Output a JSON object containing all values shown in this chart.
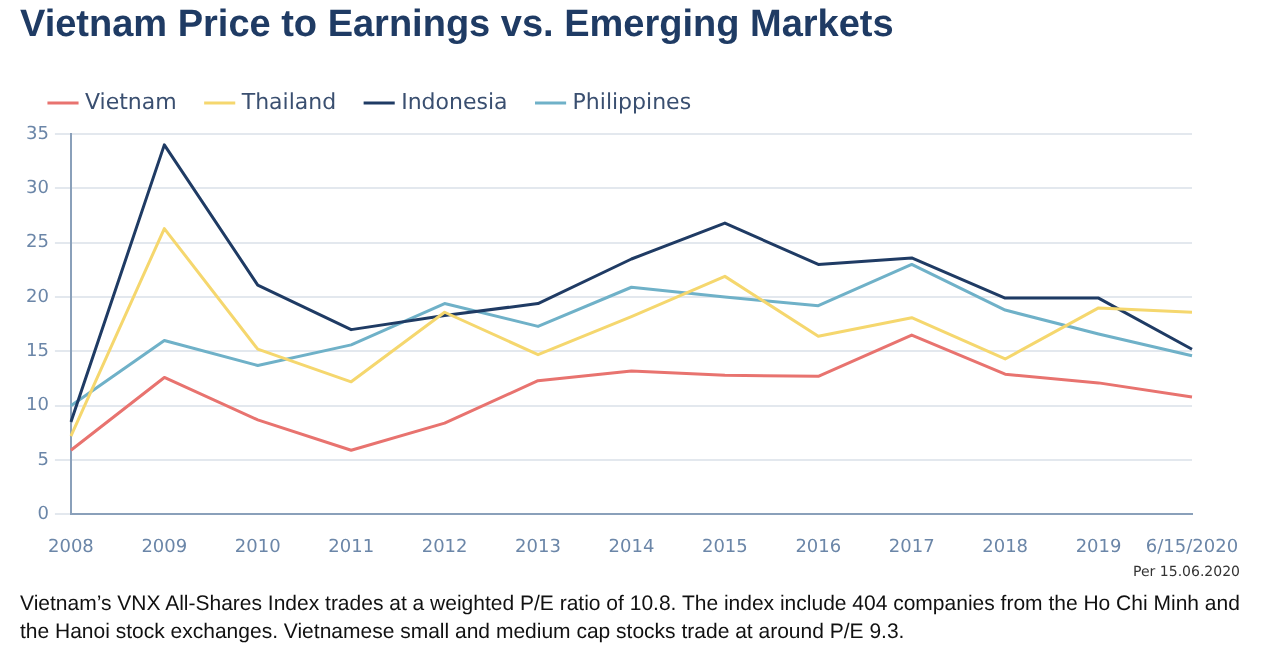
{
  "chart_data": {
    "type": "line",
    "title": "Vietnam Price to Earnings vs. Emerging Markets",
    "categories": [
      "2008",
      "2009",
      "2010",
      "2011",
      "2012",
      "2013",
      "2014",
      "2015",
      "2016",
      "2017",
      "2018",
      "2019",
      "6/15/2020"
    ],
    "series": [
      {
        "name": "Vietnam",
        "color": "#e8736f",
        "values": [
          5.9,
          12.6,
          8.7,
          5.9,
          8.4,
          12.3,
          13.2,
          12.8,
          12.7,
          16.5,
          12.9,
          12.1,
          10.8
        ]
      },
      {
        "name": "Thailand",
        "color": "#f5d76e",
        "values": [
          7.2,
          26.3,
          15.2,
          12.2,
          18.6,
          14.7,
          18.2,
          21.9,
          16.4,
          18.1,
          14.3,
          19.0,
          18.6
        ]
      },
      {
        "name": "Indonesia",
        "color": "#1f3b64",
        "values": [
          8.5,
          34.0,
          21.1,
          17.0,
          18.3,
          19.4,
          23.5,
          26.8,
          23.0,
          23.6,
          19.9,
          19.9,
          15.2
        ]
      },
      {
        "name": "Philippines",
        "color": "#6fb1c8",
        "values": [
          10.0,
          16.0,
          13.7,
          15.6,
          19.4,
          17.3,
          20.9,
          20.0,
          19.2,
          23.0,
          18.8,
          16.6,
          14.6
        ]
      }
    ],
    "ylim": [
      0,
      35
    ],
    "yticks": [
      0,
      5,
      10,
      15,
      20,
      25,
      30,
      35
    ],
    "grid": "y",
    "legend": "top left",
    "marker": "none",
    "line_style": "solid",
    "annotations": [
      "Per 15.06.2020",
      "Vietnam’s VNX All-Shares Index trades at a weighted P/E ratio of 10.8. The index include 404 companies from the Ho Chi Minh and the Hanoi stock exchanges. Vietnamese small and medium cap stocks trade at around P/E 9.3."
    ]
  }
}
